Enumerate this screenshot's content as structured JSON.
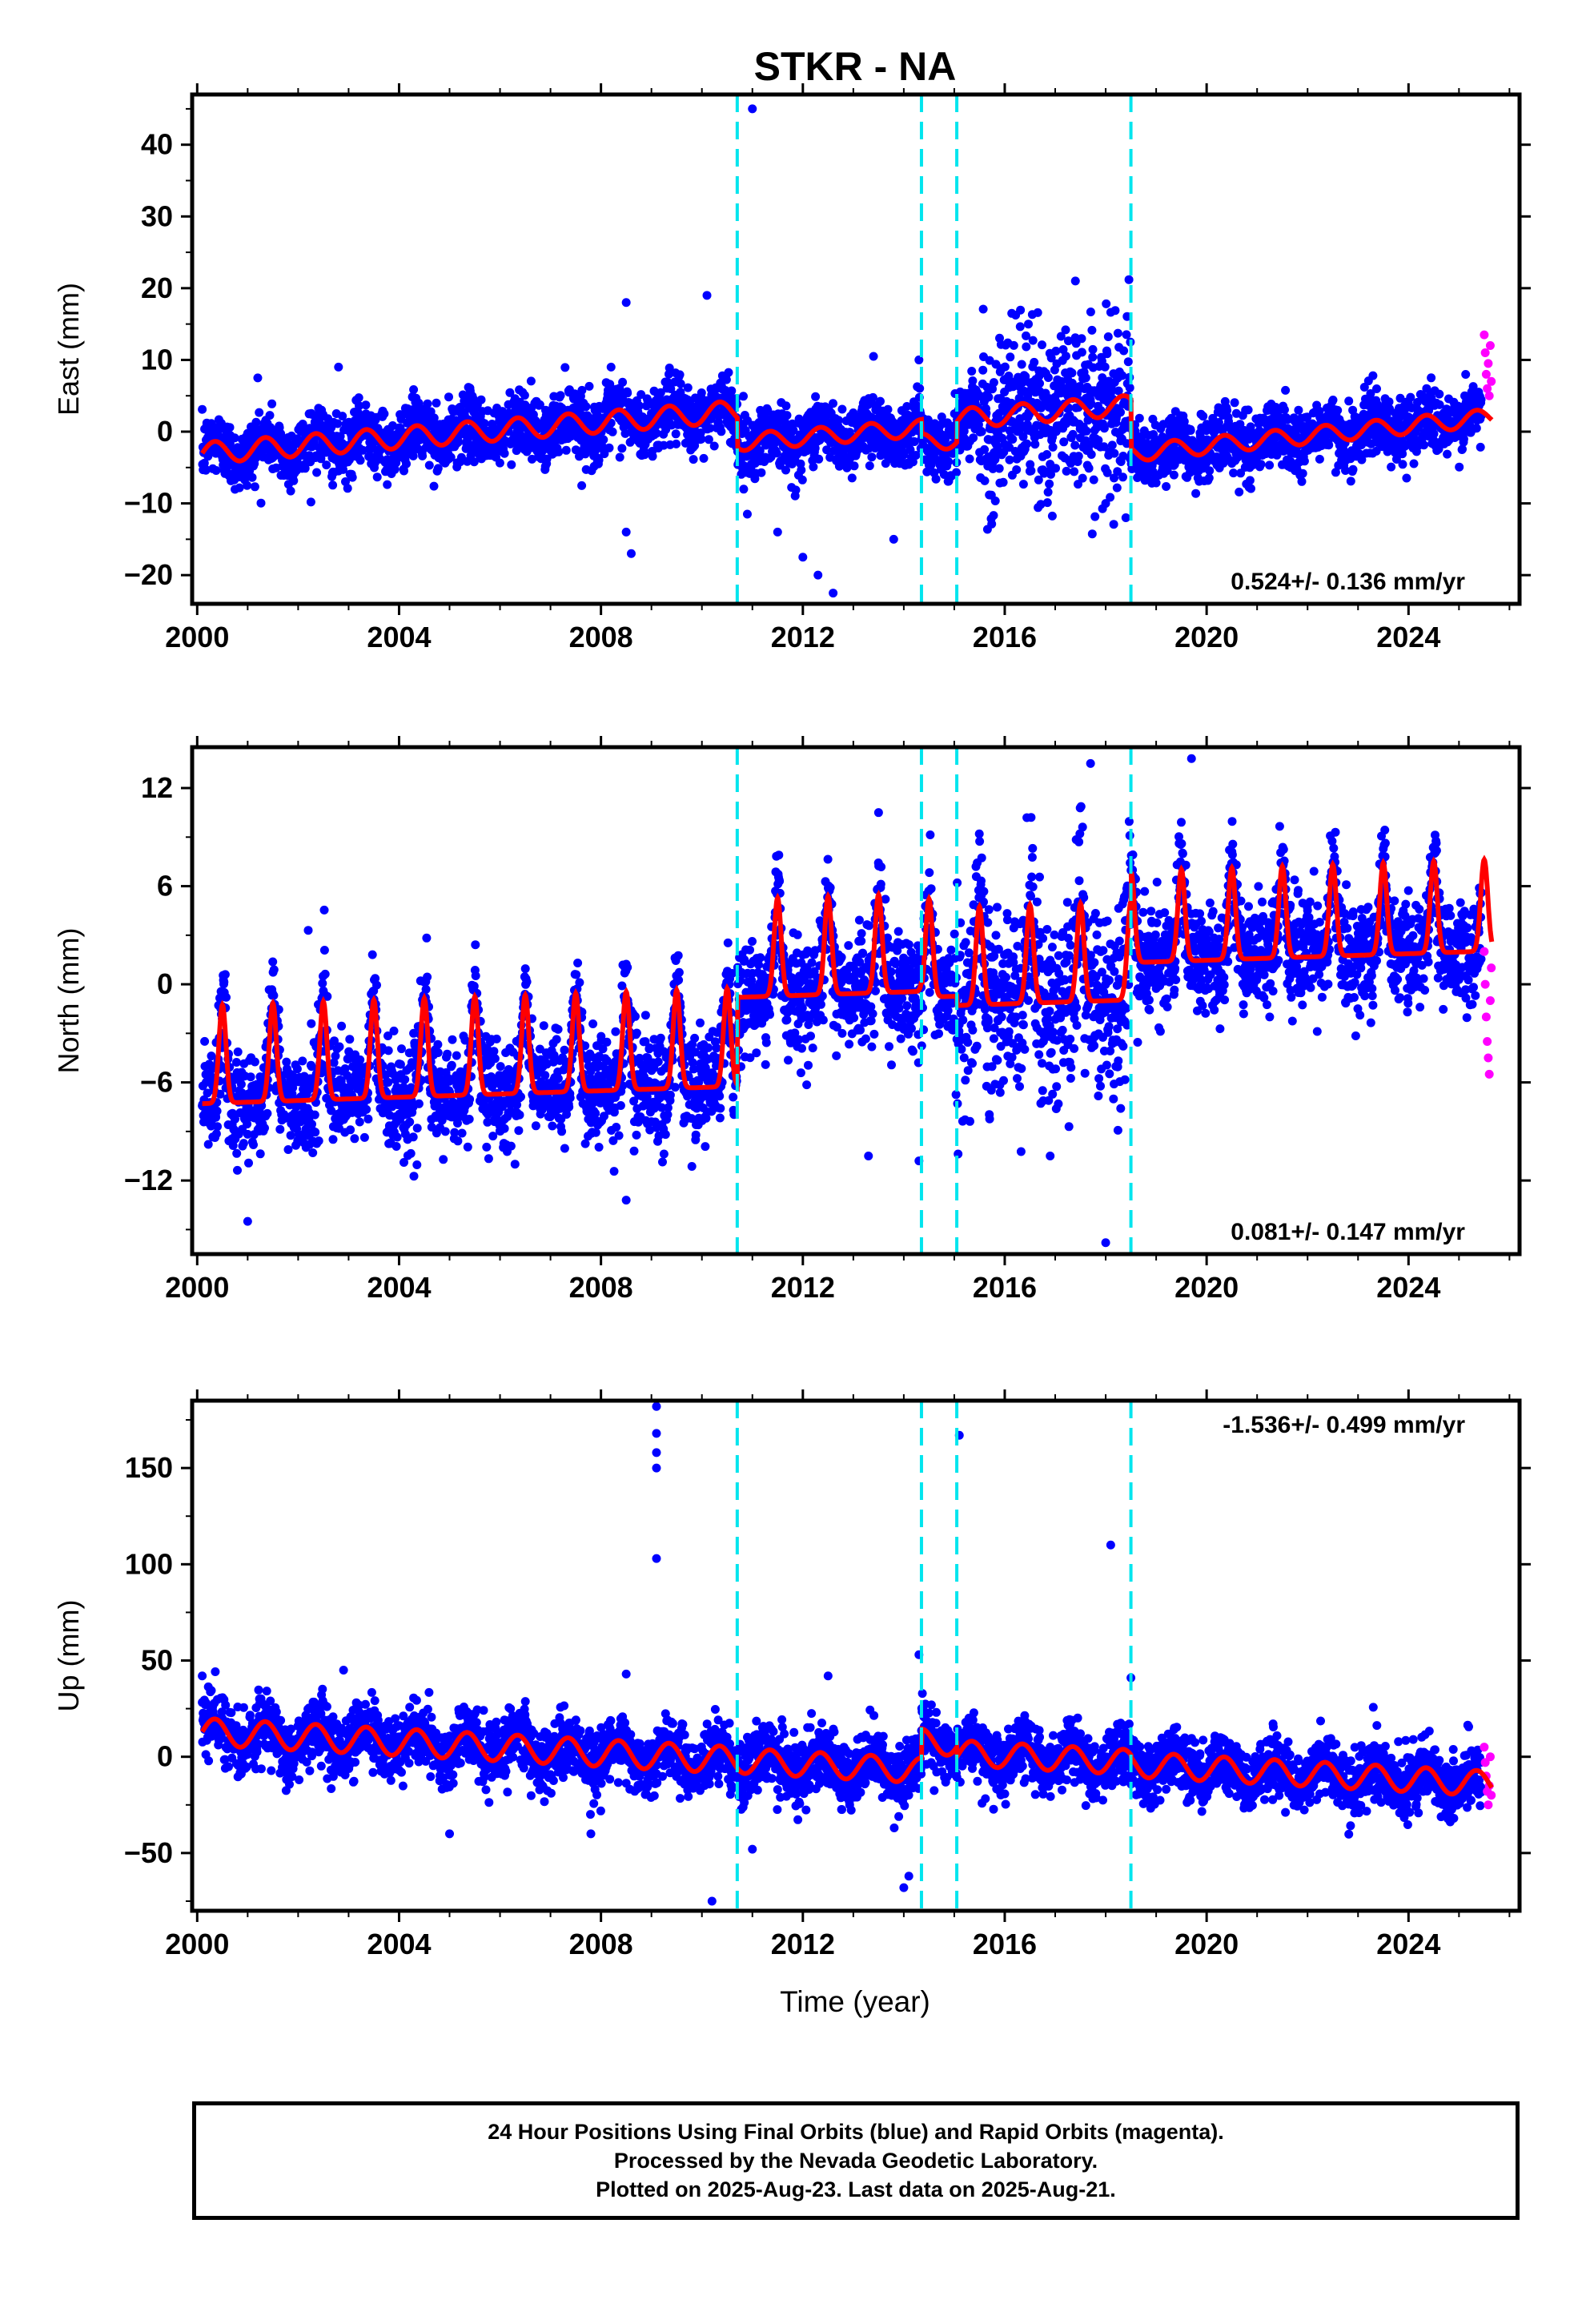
{
  "chart_data": {
    "type": "scatter",
    "title": "STKR - NA",
    "xlabel": "Time (year)",
    "x_tick_labels": [
      "2000",
      "2004",
      "2008",
      "2012",
      "2016",
      "2020",
      "2024"
    ],
    "xlim": [
      1999.9,
      2026.2
    ],
    "offset_lines_year": [
      2010.7,
      2014.35,
      2015.05,
      2018.5
    ],
    "colors": {
      "final_orbits": "#0000ff",
      "rapid_orbits": "#ff00ff",
      "model_fit": "#ff0000",
      "offset_line": "#00e5ee"
    },
    "panels": [
      {
        "component": "east",
        "ylabel": "East (mm)",
        "ylim": [
          -24,
          47
        ],
        "y_ticks": [
          -20,
          -10,
          0,
          10,
          20,
          30,
          40
        ],
        "y_tick_labels": [
          "−20",
          "−10",
          "0",
          "10",
          "20",
          "30",
          "40"
        ],
        "rate_label": "0.524+/- 0.136 mm/yr",
        "rate_position": "bottom-right",
        "model_segments": [
          {
            "start": 2000.1,
            "end": 2010.7,
            "offset": -3.0,
            "slope": 0.55,
            "seasonal_amp": 1.5
          },
          {
            "start": 2010.7,
            "end": 2014.35,
            "offset": -1.5,
            "slope": 0.55,
            "seasonal_amp": 1.2
          },
          {
            "start": 2014.35,
            "end": 2015.05,
            "offset": -1.5,
            "slope": 0.55,
            "seasonal_amp": 1.2
          },
          {
            "start": 2015.05,
            "end": 2018.5,
            "offset": 1.8,
            "slope": 0.55,
            "seasonal_amp": 1.4
          },
          {
            "start": 2018.5,
            "end": 2025.65,
            "offset": -3.0,
            "slope": 0.7,
            "seasonal_amp": 1.2
          }
        ],
        "outliers": [
          [
            2001.2,
            7.5
          ],
          [
            2002.8,
            9.0
          ],
          [
            2008.2,
            9.0
          ],
          [
            2008.5,
            18.0
          ],
          [
            2008.5,
            -14.0
          ],
          [
            2008.6,
            -17.0
          ],
          [
            2010.1,
            19.0
          ],
          [
            2011.0,
            45.0
          ],
          [
            2010.9,
            -11.5
          ],
          [
            2011.5,
            -14.0
          ],
          [
            2012.0,
            -17.5
          ],
          [
            2012.3,
            -20.0
          ],
          [
            2012.6,
            -22.5
          ],
          [
            2013.4,
            10.5
          ],
          [
            2013.8,
            -15.0
          ],
          [
            2014.3,
            10.0
          ],
          [
            2017.4,
            21.0
          ],
          [
            2018.0,
            -10.0
          ],
          [
            2018.4,
            -12.0
          ]
        ],
        "rapid_orbit_points": [
          [
            2025.5,
            13.5
          ],
          [
            2025.52,
            11.0
          ],
          [
            2025.54,
            8.0
          ],
          [
            2025.56,
            6.0
          ],
          [
            2025.58,
            9.5
          ],
          [
            2025.6,
            5.0
          ],
          [
            2025.62,
            12.0
          ],
          [
            2025.64,
            7.0
          ]
        ]
      },
      {
        "component": "north",
        "ylabel": "North (mm)",
        "ylim": [
          -16.5,
          14.5
        ],
        "y_ticks": [
          -12,
          -6,
          0,
          6,
          12
        ],
        "y_tick_labels": [
          "−12",
          "−6",
          "0",
          "6",
          "12"
        ],
        "rate_label": "0.081+/- 0.147 mm/yr",
        "rate_position": "bottom-right",
        "model_segments": [
          {
            "start": 2000.1,
            "end": 2010.7,
            "offset": -5.5,
            "slope": 0.1,
            "seasonal_amp": 3.0
          },
          {
            "start": 2010.7,
            "end": 2014.35,
            "offset": 1.0,
            "slope": 0.1,
            "seasonal_amp": 3.0
          },
          {
            "start": 2014.35,
            "end": 2015.05,
            "offset": 1.0,
            "slope": 0.1,
            "seasonal_amp": 3.0
          },
          {
            "start": 2015.05,
            "end": 2018.5,
            "offset": 0.5,
            "slope": 0.1,
            "seasonal_amp": 3.0
          },
          {
            "start": 2018.5,
            "end": 2025.65,
            "offset": 3.0,
            "slope": 0.1,
            "seasonal_amp": 2.8
          }
        ],
        "outliers": [
          [
            2001.0,
            -14.5
          ],
          [
            2002.2,
            3.3
          ],
          [
            2008.5,
            -13.2
          ],
          [
            2013.3,
            -10.5
          ],
          [
            2014.3,
            -10.8
          ],
          [
            2016.9,
            -10.5
          ],
          [
            2017.7,
            13.5
          ],
          [
            2018.0,
            -15.8
          ],
          [
            2019.7,
            13.8
          ],
          [
            2013.5,
            10.5
          ]
        ],
        "rapid_orbit_points": [
          [
            2025.5,
            2.0
          ],
          [
            2025.52,
            0.0
          ],
          [
            2025.54,
            -2.0
          ],
          [
            2025.56,
            -3.5
          ],
          [
            2025.58,
            -4.5
          ],
          [
            2025.6,
            -5.5
          ],
          [
            2025.62,
            -1.0
          ],
          [
            2025.64,
            1.0
          ]
        ]
      },
      {
        "component": "up",
        "ylabel": "Up (mm)",
        "ylim": [
          -80,
          185
        ],
        "y_ticks": [
          -50,
          0,
          50,
          100,
          150
        ],
        "y_tick_labels": [
          "−50",
          "0",
          "50",
          "100",
          "150"
        ],
        "rate_label": "-1.536+/- 0.499 mm/yr",
        "rate_position": "top-right",
        "model_segments": [
          {
            "start": 2000.1,
            "end": 2010.7,
            "offset": 13.0,
            "slope": -1.4,
            "seasonal_amp": 7.0
          },
          {
            "start": 2010.7,
            "end": 2014.35,
            "offset": -2.0,
            "slope": -1.4,
            "seasonal_amp": 6.5
          },
          {
            "start": 2014.35,
            "end": 2015.05,
            "offset": 8.0,
            "slope": -1.4,
            "seasonal_amp": 6.5
          },
          {
            "start": 2015.05,
            "end": 2018.5,
            "offset": 2.0,
            "slope": -1.4,
            "seasonal_amp": 6.5
          },
          {
            "start": 2018.5,
            "end": 2025.65,
            "offset": -4.0,
            "slope": -1.4,
            "seasonal_amp": 6.5
          }
        ],
        "outliers": [
          [
            2000.1,
            42.0
          ],
          [
            2002.9,
            45.0
          ],
          [
            2008.5,
            43.0
          ],
          [
            2009.1,
            182.0
          ],
          [
            2009.1,
            168.0
          ],
          [
            2009.1,
            158.0
          ],
          [
            2009.1,
            150.0
          ],
          [
            2009.1,
            103.0
          ],
          [
            2010.2,
            -75.0
          ],
          [
            2011.0,
            -48.0
          ],
          [
            2012.5,
            42.0
          ],
          [
            2014.0,
            -68.0
          ],
          [
            2014.1,
            -62.0
          ],
          [
            2014.3,
            53.0
          ],
          [
            2015.1,
            167.0
          ],
          [
            2018.1,
            110.0
          ],
          [
            2018.5,
            41.0
          ],
          [
            2005.0,
            -40.0
          ],
          [
            2007.8,
            -40.0
          ]
        ],
        "rapid_orbit_points": [
          [
            2025.5,
            5.0
          ],
          [
            2025.52,
            -3.0
          ],
          [
            2025.54,
            -10.0
          ],
          [
            2025.56,
            -18.0
          ],
          [
            2025.58,
            -25.0
          ],
          [
            2025.6,
            -15.0
          ],
          [
            2025.62,
            0.0
          ],
          [
            2025.64,
            -20.0
          ]
        ]
      }
    ]
  },
  "footer": {
    "line1": "24 Hour Positions Using Final Orbits (blue) and Rapid Orbits (magenta).",
    "line2": "Processed by the Nevada Geodetic Laboratory.",
    "line3": "Plotted on 2025-Aug-23. Last data on 2025-Aug-21."
  }
}
